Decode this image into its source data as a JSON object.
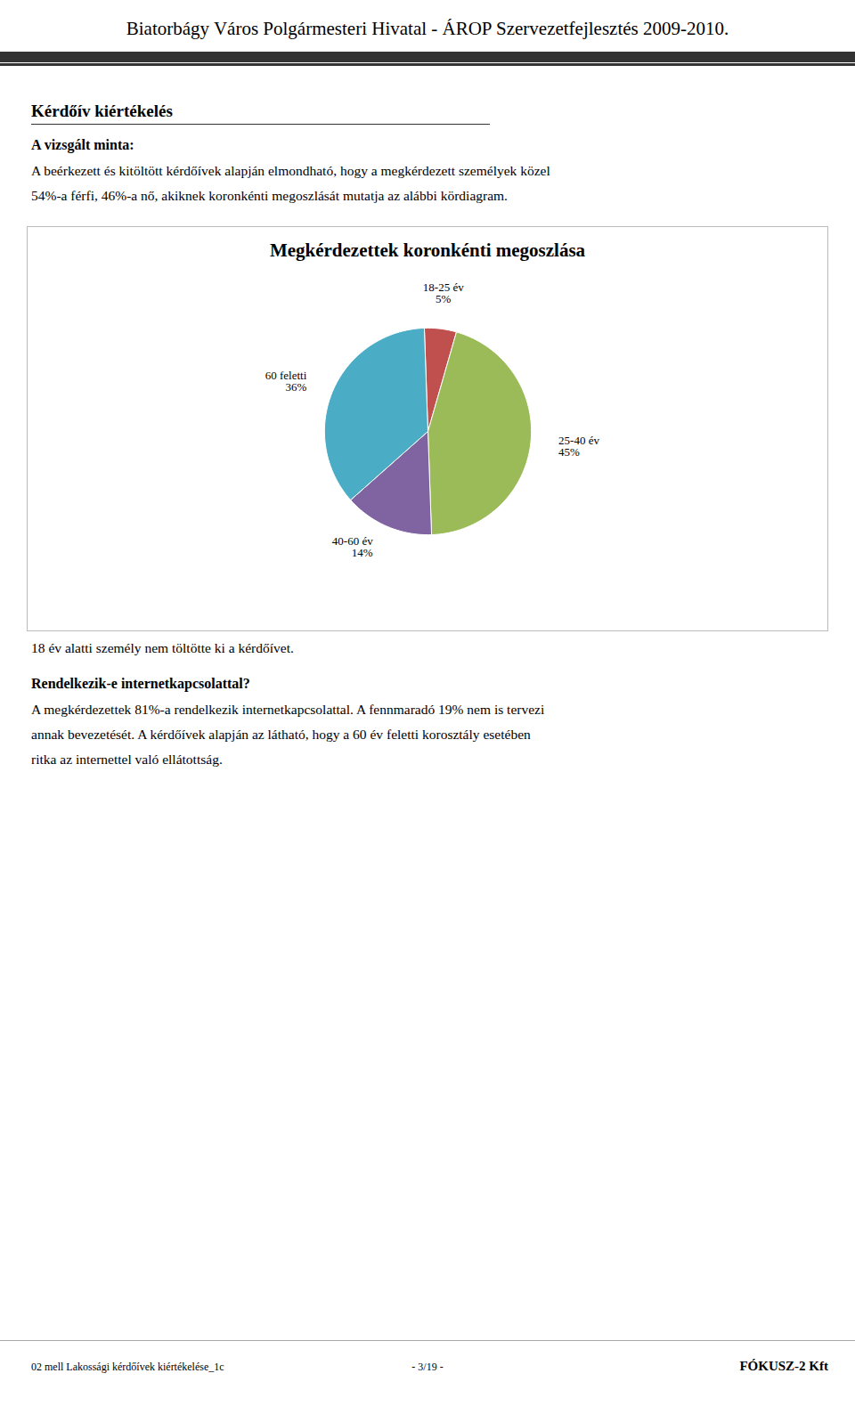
{
  "chart_data": {
    "type": "pie",
    "title": "Megkérdezettek koronkénti megoszlása",
    "categories": [
      "18-25 év",
      "25-40 év",
      "40-60 év",
      "60 feletti"
    ],
    "values": [
      5,
      45,
      14,
      36
    ],
    "value_labels": [
      "5%",
      "45%",
      "14%",
      "36%"
    ],
    "colors": [
      "#C0504D",
      "#9BBB59",
      "#8064A2",
      "#4BACC6"
    ],
    "data_labels": true
  },
  "page": {
    "header_title": "Biatorbágy Város Polgármesteri Hivatal - ÁROP Szervezetfejlesztés 2009-2010.",
    "section_title": "Kérdőív kiértékelés",
    "subsection_title": "A vizsgált minta:",
    "body_text1": [
      "A beérkezett és kitöltött kérdőívek alapján elmondható, hogy a megkérdezett személyek közel",
      "54%-a férfi, 46%-a nő, akiknek koronkénti megoszlását mutatja az alábbi kördiagram."
    ],
    "note_text": "18 év alatti személy nem töltötte ki a kérdőívet.",
    "section2_title": "Rendelkezik-e internetkapcsolattal?",
    "body_text2": [
      "A megkérdezettek 81%-a rendelkezik internetkapcsolattal. A fennmaradó 19% nem is tervezi",
      "annak bevezetését. A kérdőívek alapján az látható, hogy a 60 év feletti korosztály esetében",
      "ritka az internettel való ellátottság."
    ],
    "footer_left": "02 mell Lakossági kérdőívek kiértékelése_1c",
    "footer_center": "- 3/19 -",
    "footer_right": "FÓKUSZ-2 Kft"
  }
}
